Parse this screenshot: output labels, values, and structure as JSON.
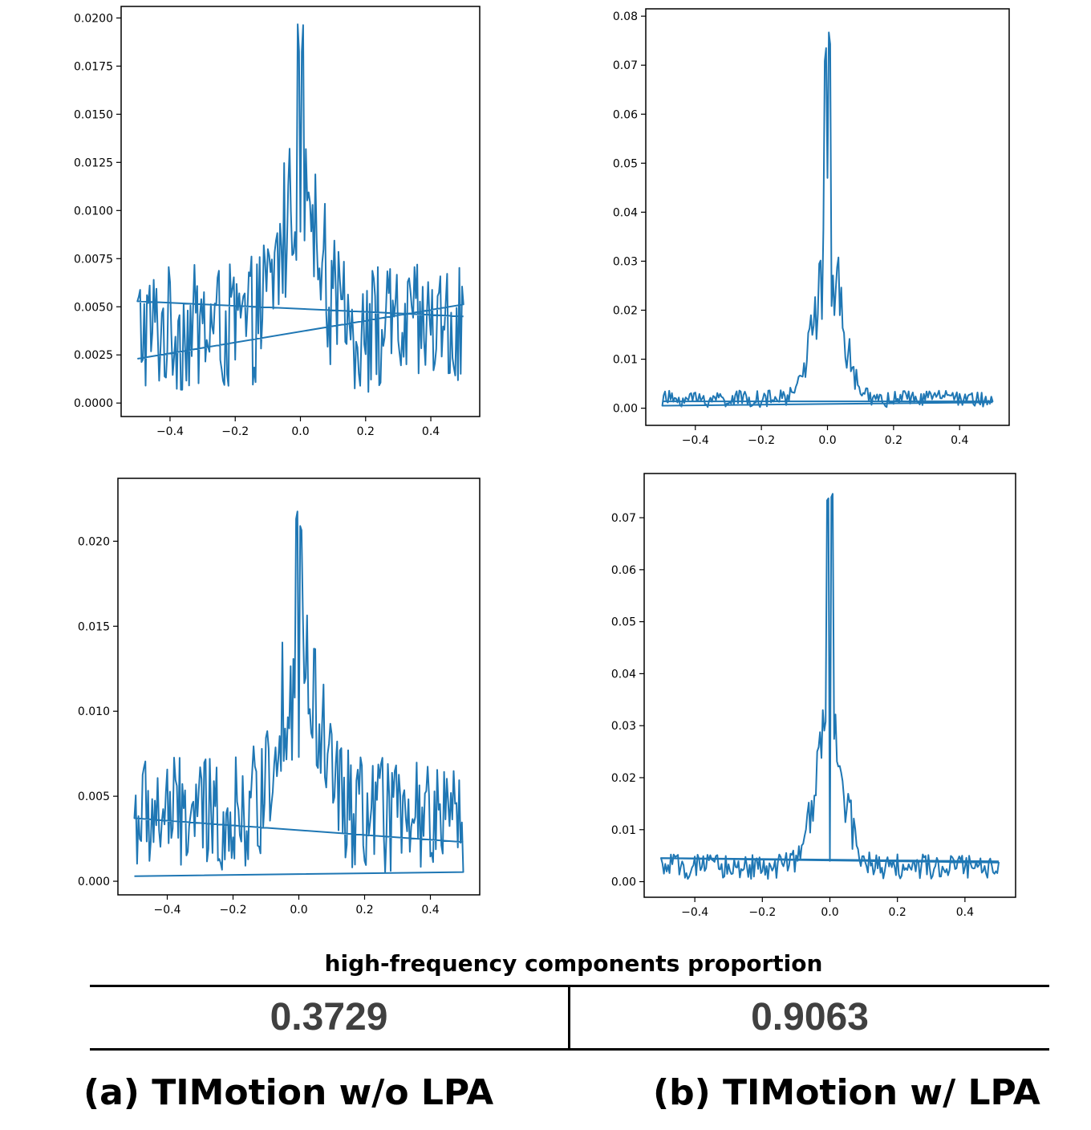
{
  "chart_data": [
    {
      "type": "line",
      "panel": "top-left",
      "x_ticks": [
        "−0.4",
        "−0.2",
        "0.0",
        "0.2",
        "0.4"
      ],
      "y_ticks": [
        "0.0000",
        "0.0025",
        "0.0050",
        "0.0075",
        "0.0100",
        "0.0125",
        "0.0150",
        "0.0175",
        "0.0200"
      ],
      "xlim": [
        -0.55,
        0.55
      ],
      "ylim": [
        -0.0007,
        0.0206
      ],
      "color": "#1f77b4",
      "peak": 0.0198,
      "center_dip": 0.0089,
      "noise_floor": [
        0.0005,
        0.0072
      ],
      "closing_line": [
        [
          -0.5,
          0.0023
        ],
        [
          0.5,
          0.0045
        ]
      ]
    },
    {
      "type": "line",
      "panel": "top-right",
      "x_ticks": [
        "−0.4",
        "−0.2",
        "0.0",
        "0.2",
        "0.4"
      ],
      "y_ticks": [
        "0.00",
        "0.01",
        "0.02",
        "0.03",
        "0.04",
        "0.05",
        "0.06",
        "0.07",
        "0.08"
      ],
      "xlim": [
        -0.55,
        0.55
      ],
      "ylim": [
        -0.0035,
        0.0815
      ],
      "color": "#1f77b4",
      "peak": 0.078,
      "center_dip": 0.047,
      "noise_floor": [
        0.0002,
        0.004
      ],
      "closing_line": [
        [
          -0.5,
          0.0014
        ],
        [
          0.5,
          0.0012
        ]
      ]
    },
    {
      "type": "line",
      "panel": "bottom-left",
      "x_ticks": [
        "−0.4",
        "−0.2",
        "0.0",
        "0.2",
        "0.4"
      ],
      "y_ticks": [
        "0.000",
        "0.005",
        "0.010",
        "0.015",
        "0.020"
      ],
      "xlim": [
        -0.55,
        0.55
      ],
      "ylim": [
        -0.0008,
        0.0237
      ],
      "color": "#1f77b4",
      "peak": 0.0226,
      "center_dip": 0.0073,
      "noise_floor": [
        0.0005,
        0.0073
      ],
      "closing_line": [
        [
          -0.5,
          0.0003
        ],
        [
          0.5,
          0.0023
        ]
      ]
    },
    {
      "type": "line",
      "panel": "bottom-right",
      "x_ticks": [
        "−0.4",
        "−0.2",
        "0.0",
        "0.2",
        "0.4"
      ],
      "y_ticks": [
        "0.00",
        "0.01",
        "0.02",
        "0.03",
        "0.04",
        "0.05",
        "0.06",
        "0.07"
      ],
      "xlim": [
        -0.55,
        0.55
      ],
      "ylim": [
        -0.003,
        0.0785
      ],
      "color": "#1f77b4",
      "peak": 0.075,
      "center_dip": 0.004,
      "noise_floor": [
        0.0005,
        0.0058
      ],
      "closing_line": [
        [
          -0.5,
          0.0045
        ],
        [
          0.5,
          0.0039
        ]
      ]
    }
  ],
  "table": {
    "title": "high-frequency components proportion",
    "value_a": "0.3729",
    "value_b": "0.9063"
  },
  "captions": {
    "a": "(a) TIMotion w/o LPA",
    "b": "(b) TIMotion w/ LPA"
  }
}
